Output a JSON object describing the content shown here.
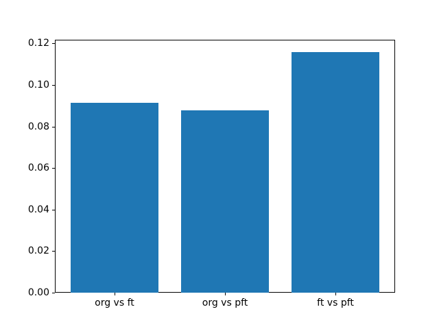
{
  "chart_data": {
    "type": "bar",
    "categories": [
      "org vs ft",
      "org vs pft",
      "ft vs pft"
    ],
    "values": [
      0.0915,
      0.0878,
      0.116
    ],
    "title": "",
    "xlabel": "",
    "ylabel": "",
    "ylim": [
      0,
      0.1218
    ],
    "yticks": [
      0.0,
      0.02,
      0.04,
      0.06,
      0.08,
      0.1,
      0.12
    ],
    "ytick_labels": [
      "0.00",
      "0.02",
      "0.04",
      "0.06",
      "0.08",
      "0.10",
      "0.12"
    ],
    "bar_width_fraction": 0.8,
    "x_margin_fraction": 0.05,
    "bar_color": "#1f77b4",
    "axes_edge_color": "#000000",
    "background_color": "#ffffff",
    "grid": false,
    "legend_position": "none"
  }
}
